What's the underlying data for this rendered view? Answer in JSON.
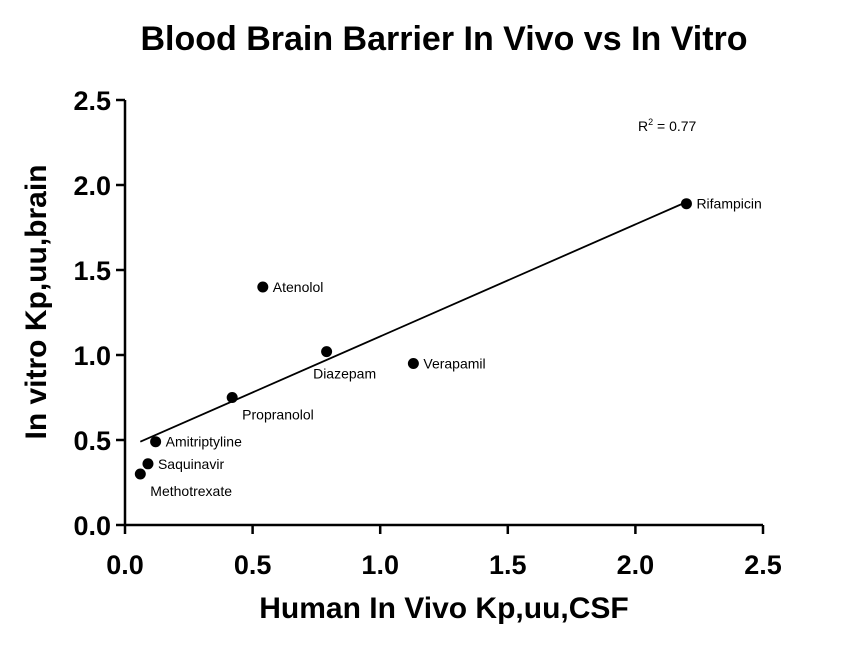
{
  "chart_data": {
    "type": "scatter",
    "title": "Blood Brain Barrier In Vivo vs In Vitro",
    "xlabel": "Human In Vivo Kp,uu,CSF",
    "ylabel": "In vitro Kp,uu,brain",
    "xlim": [
      0.0,
      2.5
    ],
    "ylim": [
      0.0,
      2.5
    ],
    "x_ticks": [
      "0.0",
      "0.5",
      "1.0",
      "1.5",
      "2.0",
      "2.5"
    ],
    "y_ticks": [
      "0.0",
      "0.5",
      "1.0",
      "1.5",
      "2.0",
      "2.5"
    ],
    "grid": false,
    "annotation": {
      "r2_base": "R",
      "r2_sup": "2",
      "r2_value": " = 0.77"
    },
    "points": [
      {
        "label": "Rifampicin",
        "x": 2.2,
        "y": 1.89,
        "label_pos": "right"
      },
      {
        "label": "Atenolol",
        "x": 0.54,
        "y": 1.4,
        "label_pos": "right"
      },
      {
        "label": "Diazepam",
        "x": 0.79,
        "y": 1.02,
        "label_pos": "below"
      },
      {
        "label": "Verapamil",
        "x": 1.13,
        "y": 0.95,
        "label_pos": "right"
      },
      {
        "label": "Propranolol",
        "x": 0.42,
        "y": 0.75,
        "label_pos": "below-right"
      },
      {
        "label": "Amitriptyline",
        "x": 0.12,
        "y": 0.49,
        "label_pos": "right"
      },
      {
        "label": "Saquinavir",
        "x": 0.09,
        "y": 0.36,
        "label_pos": "right"
      },
      {
        "label": "Methotrexate",
        "x": 0.06,
        "y": 0.3,
        "label_pos": "below-right"
      }
    ],
    "fit_line": {
      "x": [
        0.06,
        2.2
      ],
      "y": [
        0.49,
        1.9
      ]
    }
  }
}
